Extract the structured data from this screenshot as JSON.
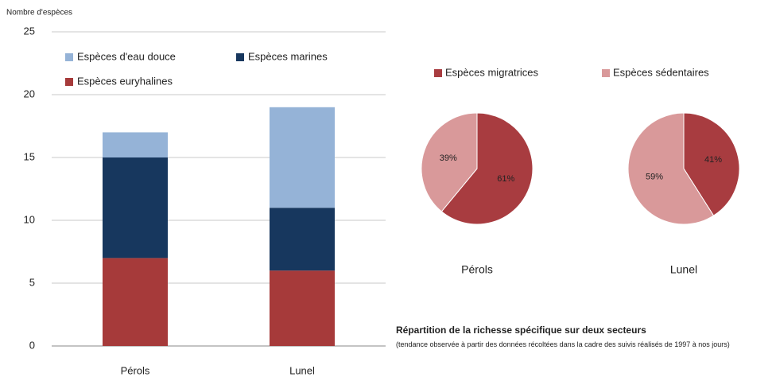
{
  "chart_data": [
    {
      "type": "bar",
      "stacked": true,
      "y_label": "Nombre d'espèces",
      "categories": [
        "Pérols",
        "Lunel"
      ],
      "series": [
        {
          "name": "Espèces euryhalines",
          "color": "#a63a3a",
          "values": [
            7,
            6
          ]
        },
        {
          "name": "Espèces marines",
          "color": "#17375e",
          "values": [
            8,
            5
          ]
        },
        {
          "name": "Espèces d'eau douce",
          "color": "#95b3d7",
          "values": [
            2,
            8
          ]
        }
      ],
      "ylim": [
        0,
        25
      ],
      "yticks": [
        0,
        5,
        10,
        15,
        20,
        25
      ],
      "grid": true,
      "legend": "top"
    },
    {
      "type": "pie",
      "legend": "top",
      "categories": [
        "Espèces migratrices",
        "Espèces sédentaires"
      ],
      "colors": [
        "#a83c40",
        "#d9999a"
      ],
      "pies": [
        {
          "title": "Pérols",
          "values": [
            61,
            39
          ],
          "value_labels": [
            "61%",
            "39%"
          ]
        },
        {
          "title": "Lunel",
          "values": [
            41,
            59
          ],
          "value_labels": [
            "41%",
            "59%"
          ]
        }
      ]
    }
  ],
  "caption": {
    "title": "Répartition de la richesse spécifique sur deux secteurs",
    "subtitle": "(tendance observée à partir des données récoltées dans la cadre des suivis réalisés de 1997 à nos jours)"
  }
}
